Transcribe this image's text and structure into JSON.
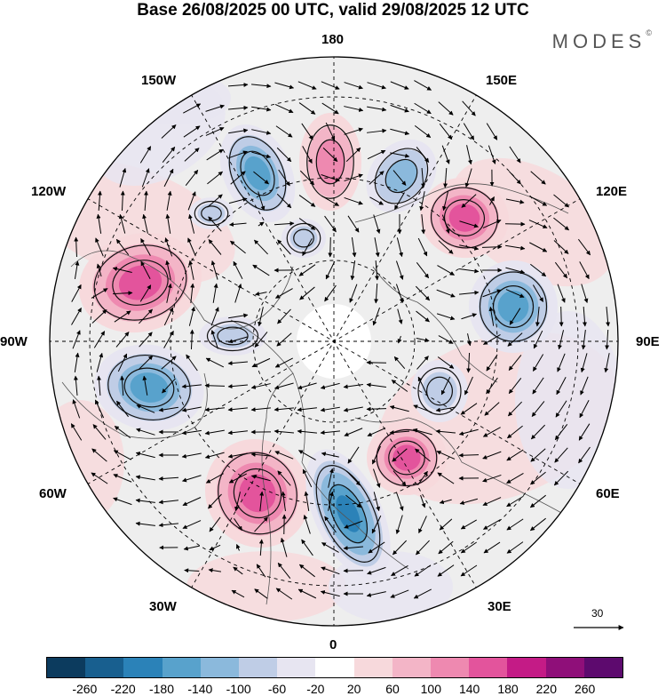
{
  "title": "Base 26/08/2025 00 UTC, valid 29/08/2025 12 UTC",
  "brand": "MODES",
  "brand_mark": "©",
  "longitude_labels": {
    "n180": "180",
    "e150": "150E",
    "e120": "120E",
    "e90": "90E",
    "e60": "60E",
    "e30": "30E",
    "s0": "0",
    "w30": "30W",
    "w60": "60W",
    "w90": "90W",
    "w120": "120W",
    "w150": "150W"
  },
  "reference_vector": {
    "value": "30"
  },
  "colorbar": {
    "colors": [
      "#0c3b5e",
      "#185f8f",
      "#2b82b8",
      "#58a2cc",
      "#8bb9dc",
      "#bfcde6",
      "#e7e5f1",
      "#ffffff",
      "#f7d9dc",
      "#f3b5c7",
      "#ee89b0",
      "#e3549c",
      "#c41b86",
      "#8f0f79",
      "#5d0a6e"
    ],
    "ticks": [
      "-260",
      "-220",
      "-180",
      "-140",
      "-100",
      "-60",
      "-20",
      "20",
      "60",
      "100",
      "140",
      "180",
      "220",
      "260"
    ]
  },
  "anomaly_centers": [
    {
      "name": "w110-high",
      "level": 4
    },
    {
      "name": "w80-low",
      "level": -4
    },
    {
      "name": "w45-high",
      "level": 4
    },
    {
      "name": "e10-low",
      "level": -5
    },
    {
      "name": "e45-high",
      "level": 4
    },
    {
      "name": "e90-low",
      "level": -4
    },
    {
      "name": "e130-high",
      "level": 4
    },
    {
      "name": "e165-low",
      "level": -3
    },
    {
      "name": "n180-high",
      "level": 3
    },
    {
      "name": "w155-low",
      "level": -4
    },
    {
      "name": "w130-low",
      "level": -2
    },
    {
      "name": "pole-low",
      "level": -2
    },
    {
      "name": "e70-weak",
      "level": -2
    },
    {
      "name": "w85-weak",
      "level": -2
    }
  ]
}
